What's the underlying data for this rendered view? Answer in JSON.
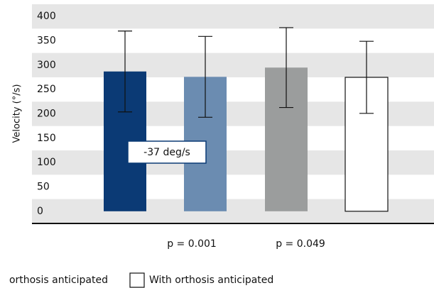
{
  "chart_data": {
    "type": "bar",
    "y_label": "Velocity (°/s)",
    "categories": [
      null,
      null,
      null,
      null
    ],
    "values": [
      287,
      276,
      295,
      275
    ],
    "errors": [
      83,
      83,
      82,
      74
    ],
    "colors": [
      "#0b3a75",
      "#6b8cb1",
      "#9b9d9d",
      "#ffffff"
    ],
    "ylim": [
      -25,
      425
    ],
    "yticks": [
      0,
      50,
      100,
      150,
      200,
      250,
      300,
      350,
      400
    ],
    "bands": true,
    "annotation": "-37 deg/s",
    "p_values": [
      "p = 0.001",
      "p = 0.049"
    ],
    "legend": [
      "orthosis anticipated",
      "With orthosis anticipated"
    ]
  }
}
